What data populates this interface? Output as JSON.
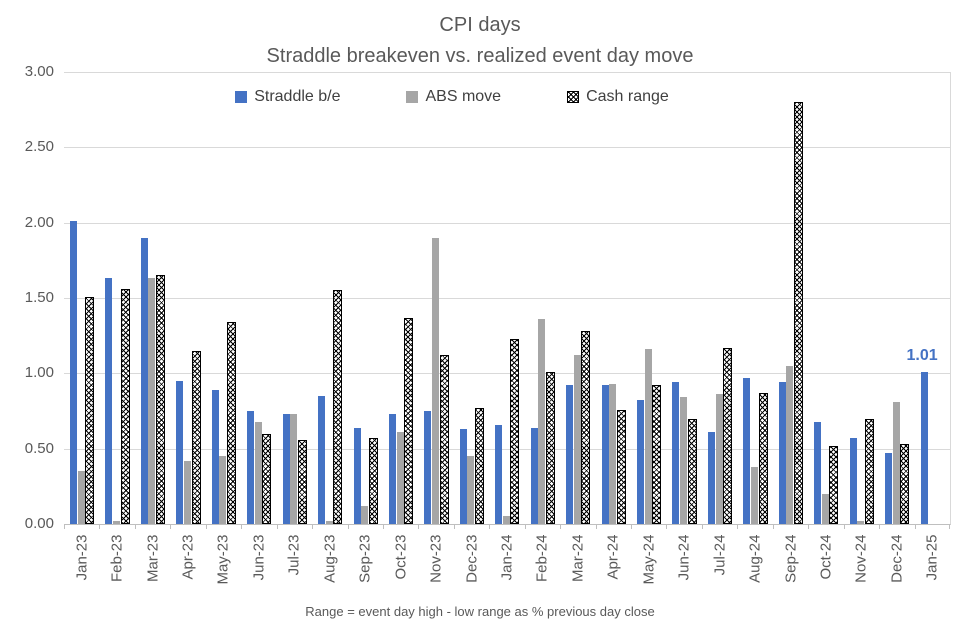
{
  "title": {
    "line1": "CPI days",
    "line2": "Straddle breakeven vs. realized event day move"
  },
  "footer": "Range = event day high - low range as % previous day close",
  "annotation": {
    "text": "1.01",
    "series": "Straddle b/e",
    "category": "Jan-25",
    "value": 1.01,
    "color": "#4472C4"
  },
  "colors": {
    "straddle_blue": "#4472C4",
    "abs_gray": "#A6A6A6",
    "hatch_black": "#000000",
    "gridline": "#D9D9D9",
    "axis_text": "#595959"
  },
  "chart_data": {
    "type": "bar",
    "title": "CPI days",
    "subtitle": "Straddle breakeven vs. realized event day move",
    "xlabel": "",
    "ylabel": "",
    "ylim": [
      0,
      3
    ],
    "ytick_values": [
      3.0,
      2.5,
      2.0,
      1.5,
      1.0,
      0.5,
      0.0
    ],
    "ytick_labels": [
      "3.00",
      "2.50",
      "2.00",
      "1.50",
      "1.00",
      "0.50",
      "0.00"
    ],
    "grid": true,
    "legend_position": "top",
    "categories": [
      "Jan-23",
      "Feb-23",
      "Mar-23",
      "Apr-23",
      "May-23",
      "Jun-23",
      "Jul-23",
      "Aug-23",
      "Sep-23",
      "Oct-23",
      "Nov-23",
      "Dec-23",
      "Jan-24",
      "Feb-24",
      "Mar-24",
      "Apr-24",
      "May-24",
      "Jun-24",
      "Jul-24",
      "Aug-24",
      "Sep-24",
      "Oct-24",
      "Nov-24",
      "Dec-24",
      "Jan-25"
    ],
    "series": [
      {
        "name": "Straddle b/e",
        "style": "solid",
        "color": "#4472C4",
        "values": [
          2.01,
          1.63,
          1.9,
          0.95,
          0.89,
          0.75,
          0.73,
          0.85,
          0.64,
          0.73,
          0.75,
          0.63,
          0.66,
          0.64,
          0.92,
          0.92,
          0.82,
          0.94,
          0.61,
          0.97,
          0.94,
          0.68,
          0.57,
          0.47,
          1.01
        ]
      },
      {
        "name": "ABS move",
        "style": "solid",
        "color": "#A6A6A6",
        "values": [
          0.35,
          0.02,
          1.63,
          0.42,
          0.45,
          0.68,
          0.73,
          0.02,
          0.12,
          0.61,
          1.9,
          0.45,
          0.05,
          1.36,
          1.12,
          0.93,
          1.16,
          0.84,
          0.86,
          0.38,
          1.05,
          0.2,
          0.02,
          0.81,
          null
        ]
      },
      {
        "name": "Cash range",
        "style": "hatched",
        "color": "#000000",
        "values": [
          1.51,
          1.56,
          1.65,
          1.15,
          1.34,
          0.6,
          0.56,
          1.55,
          0.57,
          1.37,
          1.12,
          0.77,
          1.23,
          1.01,
          1.28,
          0.76,
          0.92,
          0.7,
          1.17,
          0.87,
          2.8,
          0.52,
          0.7,
          0.53,
          null
        ]
      }
    ]
  }
}
